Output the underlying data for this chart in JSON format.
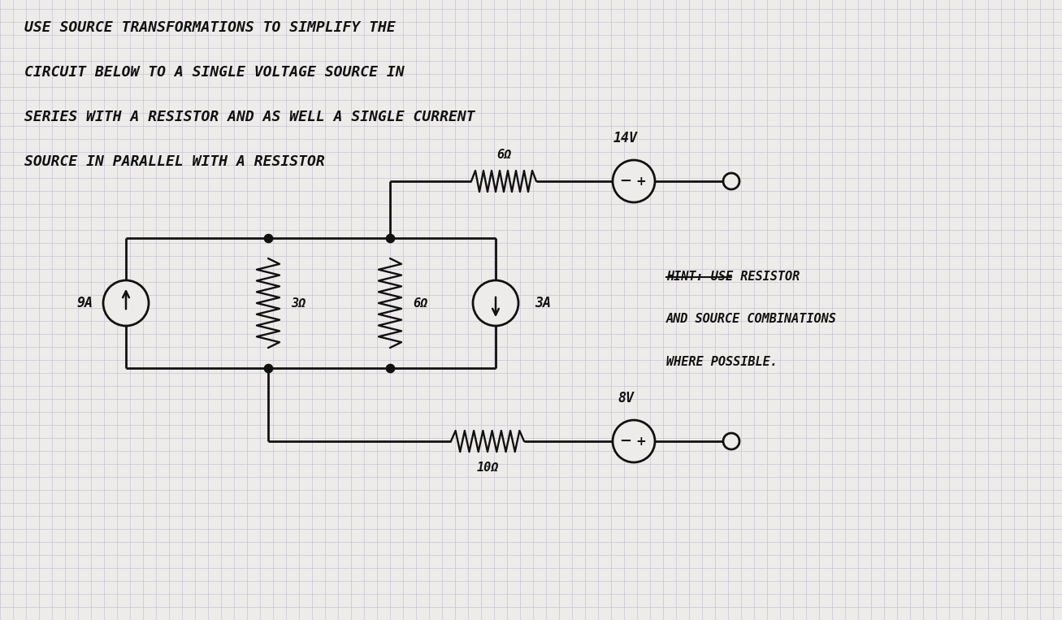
{
  "bg_color": "#eeecea",
  "grid_color": "#c5c5d5",
  "line_color": "#111111",
  "title_lines": [
    "USE SOURCE TRANSFORMATIONS TO SIMPLIFY THE",
    "CIRCUIT BELOW TO A SINGLE VOLTAGE SOURCE IN",
    "SERIES WITH A RESISTOR AND AS WELL A SINGLE CURRENT",
    "SOURCE IN PARALLEL WITH A RESISTOR"
  ],
  "hint_lines": [
    "HINT: USE RESISTOR",
    "AND SOURCE COMBINATIONS",
    "WHERE POSSIBLE."
  ],
  "figsize": [
    13.07,
    7.63
  ],
  "dpi": 100
}
